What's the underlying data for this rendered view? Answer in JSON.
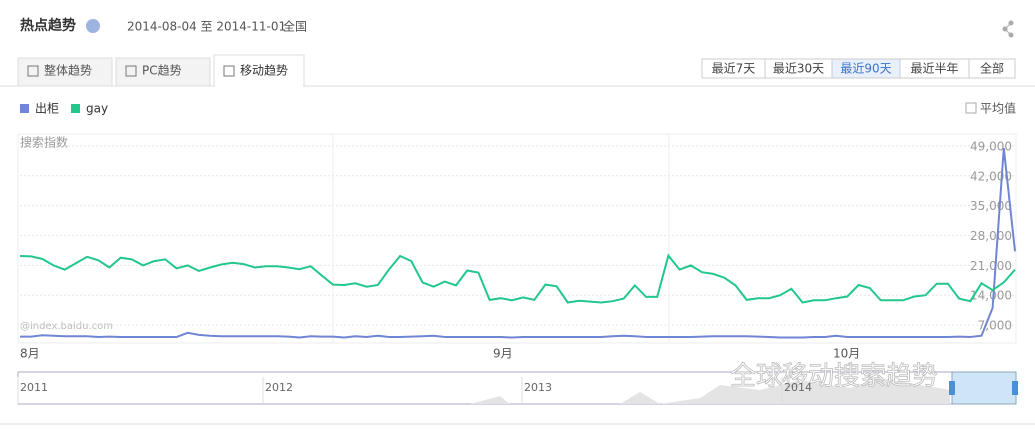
{
  "header": {
    "title": "热点趋势",
    "date_range": "2014-08-04 至 2014-11-01",
    "region": "全国"
  },
  "tabs": [
    "整体趋势",
    "PC趋势",
    "移动趋势"
  ],
  "active_tab": 2,
  "range_buttons": [
    "最近7天",
    "最近30天",
    "最近90天",
    "最近半年",
    "全部"
  ],
  "active_range": 2,
  "average_toggle": "平均值",
  "watermark": "@index.baidu.com",
  "overlay_text": "全球移动搜索趋势",
  "chart_data": {
    "type": "line",
    "y_label": "搜索指数",
    "x_labels": [
      "8月",
      "9月",
      "10月"
    ],
    "series": [
      {
        "name": "出柜",
        "color": "#7085d4",
        "values": [
          4300,
          4300,
          4600,
          4500,
          4400,
          4400,
          4400,
          4200,
          4300,
          4200,
          4200,
          4200,
          4200,
          4200,
          4200,
          5200,
          4700,
          4500,
          4400,
          4400,
          4400,
          4400,
          4400,
          4400,
          4300,
          4100,
          4400,
          4300,
          4300,
          4100,
          4400,
          4200,
          4500,
          4200,
          4200,
          4300,
          4400,
          4500,
          4200,
          4200,
          4200,
          4200,
          4200,
          4200,
          4100,
          4200,
          4200,
          4200,
          4200,
          4200,
          4200,
          4200,
          4200,
          4400,
          4500,
          4400,
          4200,
          4200,
          4200,
          4200,
          4200,
          4300,
          4400,
          4400,
          4400,
          4400,
          4300,
          4200,
          4100,
          4100,
          4100,
          4200,
          4200,
          4500,
          4200,
          4200,
          4200,
          4200,
          4200,
          4200,
          4200,
          4200,
          4200,
          4200,
          4300,
          4200,
          4500,
          11000,
          48500,
          24300
        ]
      },
      {
        "name": "gay",
        "color": "#22c78b",
        "values": [
          23200,
          23100,
          22500,
          21000,
          20000,
          21500,
          23000,
          22200,
          20500,
          22800,
          22400,
          21000,
          22000,
          22400,
          20300,
          21000,
          19700,
          20500,
          21200,
          21600,
          21300,
          20500,
          20800,
          20800,
          20500,
          20100,
          20800,
          18600,
          16500,
          16400,
          16800,
          16000,
          16400,
          20000,
          23200,
          22000,
          17000,
          16000,
          17200,
          16300,
          19800,
          19300,
          12900,
          13300,
          12800,
          13500,
          12900,
          16500,
          16100,
          12300,
          12700,
          12500,
          12300,
          12600,
          13200,
          16300,
          13600,
          13600,
          23300,
          20000,
          21000,
          19400,
          19000,
          18100,
          16300,
          12900,
          13300,
          13300,
          14000,
          15500,
          12300,
          12800,
          12800,
          13300,
          13700,
          16400,
          15700,
          12800,
          12800,
          12800,
          13700,
          14000,
          16700,
          16700,
          13200,
          12600,
          16800,
          15200,
          17000,
          20000
        ]
      }
    ],
    "ylim": [
      2800,
      51800
    ],
    "yticks": [
      {
        "value": 7000,
        "label": "7,000"
      },
      {
        "value": 14000,
        "label": "14,000"
      },
      {
        "value": 21000,
        "label": "21,000"
      },
      {
        "value": 28000,
        "label": "28,000"
      },
      {
        "value": 35000,
        "label": "35,000"
      },
      {
        "value": 42000,
        "label": "42,000"
      },
      {
        "value": 49000,
        "label": "49,000"
      }
    ],
    "grid": true
  },
  "overview": {
    "years": [
      "2011",
      "2012",
      "2013",
      "2014"
    ]
  }
}
